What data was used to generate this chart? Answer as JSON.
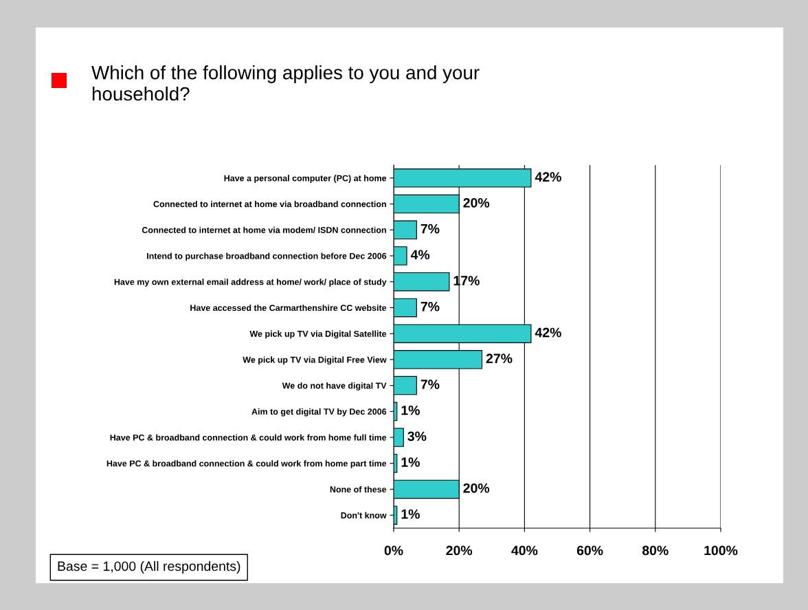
{
  "chart_data": {
    "type": "bar",
    "orientation": "horizontal",
    "title": "Which of the following applies to you and your\nhousehold?",
    "categories": [
      "Have a personal computer (PC) at home",
      "Connected to internet at home via broadband connection",
      "Connected to internet at home via modem/ ISDN connection",
      "Intend to purchase broadband connection before Dec 2006",
      "Have my own external email address at home/ work/ place of study",
      "Have accessed the Carmarthenshire CC website",
      "We pick up TV via Digital Satellite",
      "We pick up TV via Digital Free View",
      "We do not have digital TV",
      "Aim to get digital TV by Dec 2006",
      "Have PC & broadband connection & could work from home full time",
      "Have PC & broadband connection & could work from home part time",
      "None of these",
      "Don't know"
    ],
    "values": [
      42,
      20,
      7,
      4,
      17,
      7,
      42,
      27,
      7,
      1,
      3,
      1,
      20,
      1
    ],
    "value_labels": [
      "42%",
      "20%",
      "7%",
      "4%",
      "17%",
      "7%",
      "42%",
      "27%",
      "7%",
      "1%",
      "3%",
      "1%",
      "20%",
      "1%"
    ],
    "color": "#33cccc",
    "xlim": [
      0,
      100
    ],
    "xticks": [
      {
        "value": 0,
        "label": "0%"
      },
      {
        "value": 20,
        "label": "20%"
      },
      {
        "value": 40,
        "label": "40%"
      },
      {
        "value": 60,
        "label": "60%"
      },
      {
        "value": 80,
        "label": "80%"
      },
      {
        "value": 100,
        "label": "100%"
      }
    ],
    "grid": "x",
    "annotations": [
      "Base = 1,000 (All respondents)"
    ]
  }
}
